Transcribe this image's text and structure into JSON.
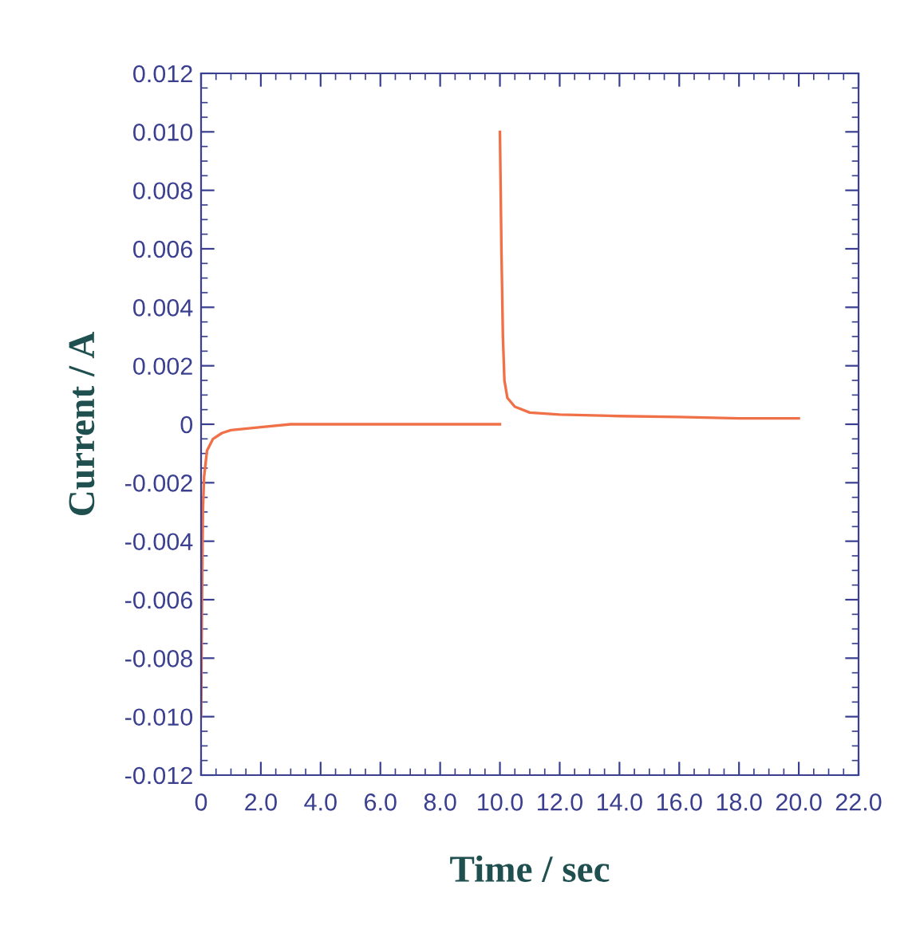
{
  "chart_data": {
    "type": "line",
    "xlabel": "Time / sec",
    "ylabel": "Current / A",
    "xlim": [
      0,
      22
    ],
    "ylim": [
      -0.012,
      0.012
    ],
    "xticks": [
      0,
      {
        "value": 2,
        "label": "2.0"
      },
      {
        "value": 4,
        "label": "4.0"
      },
      {
        "value": 6,
        "label": "6.0"
      },
      {
        "value": 8,
        "label": "8.0"
      },
      {
        "value": 10,
        "label": "10.0"
      },
      {
        "value": 12,
        "label": "12.0"
      },
      {
        "value": 14,
        "label": "14.0"
      },
      {
        "value": 16,
        "label": "16.0"
      },
      {
        "value": 18,
        "label": "18.0"
      },
      {
        "value": 20,
        "label": "20.0"
      },
      {
        "value": 22,
        "label": "22.0"
      }
    ],
    "yticks": [
      {
        "value": -0.012,
        "label": "-0.012"
      },
      {
        "value": -0.01,
        "label": "-0.010"
      },
      {
        "value": -0.008,
        "label": "-0.008"
      },
      {
        "value": -0.006,
        "label": "-0.006"
      },
      {
        "value": -0.004,
        "label": "-0.004"
      },
      {
        "value": -0.002,
        "label": "-0.002"
      },
      0,
      {
        "value": 0.002,
        "label": "0.002"
      },
      {
        "value": 0.004,
        "label": "0.004"
      },
      {
        "value": 0.006,
        "label": "0.006"
      },
      {
        "value": 0.008,
        "label": "0.008"
      },
      {
        "value": 0.01,
        "label": "0.010"
      },
      {
        "value": 0.012,
        "label": "0.012"
      }
    ],
    "grid": false,
    "marker": "none",
    "line_style": "solid",
    "series": [
      {
        "color": "#f07048",
        "x": [
          0,
          0.03,
          0.06,
          0.1,
          0.2,
          0.4,
          0.7,
          1.0,
          2.0,
          3.0,
          5.0,
          10.0
        ],
        "values": [
          -0.01,
          -0.006,
          -0.003,
          -0.0018,
          -0.0009,
          -0.0005,
          -0.0003,
          -0.0002,
          -0.0001,
          0,
          0,
          0
        ]
      },
      {
        "color": "#f07048",
        "x": [
          10.0,
          10.05,
          10.1,
          10.15,
          10.25,
          10.5,
          11.0,
          12.0,
          14.0,
          16.0,
          18.0,
          20.0
        ],
        "values": [
          0.01,
          0.006,
          0.003,
          0.0015,
          0.0009,
          0.0006,
          0.0004,
          0.00033,
          0.00028,
          0.00025,
          0.0002,
          0.0002
        ]
      }
    ]
  }
}
